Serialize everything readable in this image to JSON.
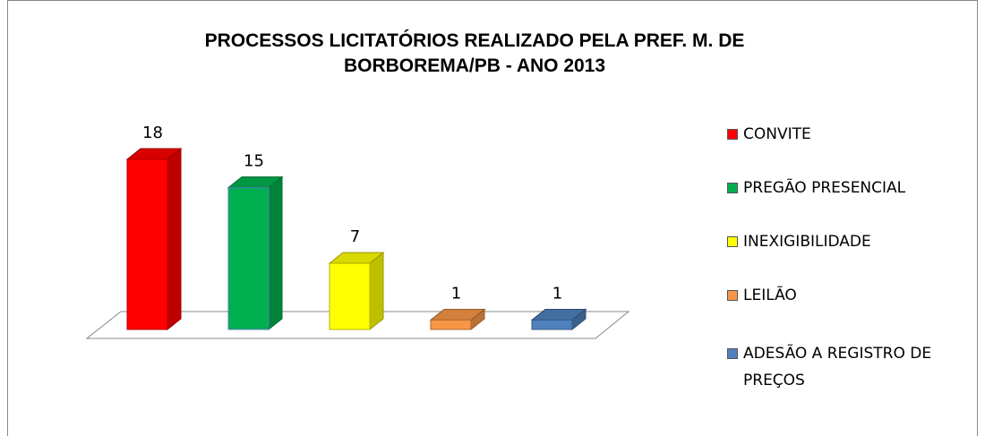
{
  "chart_data": {
    "type": "bar",
    "title": "PROCESSOS LICITATÓRIOS REALIZADO PELA PREF. M. DE BORBOREMA/PB - ANO 2013",
    "categories": [
      "CONVITE",
      "PREGÃO PRESENCIAL",
      "INEXIGIBILIDADE",
      "LEILÃO",
      "ADESÃO A REGISTRO DE PREÇOS"
    ],
    "values": [
      18,
      15,
      7,
      1,
      1
    ],
    "colors": [
      "#ff0000",
      "#00b050",
      "#ffff00",
      "#f79646",
      "#4f81bd"
    ],
    "legend": "right"
  }
}
